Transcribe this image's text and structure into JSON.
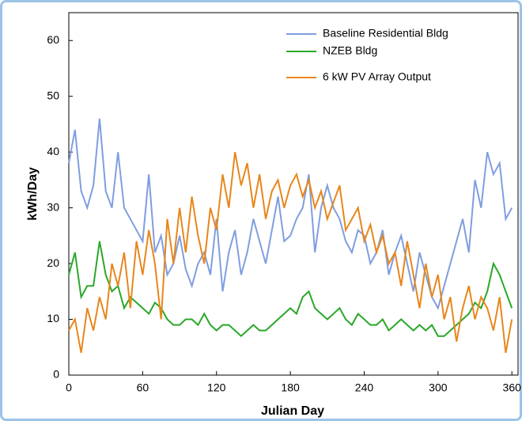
{
  "chart_data": {
    "type": "line",
    "x_label": "Julian Day",
    "y_label": "kWh/Day",
    "x": [
      0,
      5,
      10,
      15,
      20,
      25,
      30,
      35,
      40,
      45,
      50,
      55,
      60,
      65,
      70,
      75,
      80,
      85,
      90,
      95,
      100,
      105,
      110,
      115,
      120,
      125,
      130,
      135,
      140,
      145,
      150,
      155,
      160,
      165,
      170,
      175,
      180,
      185,
      190,
      195,
      200,
      205,
      210,
      215,
      220,
      225,
      230,
      235,
      240,
      245,
      250,
      255,
      260,
      265,
      270,
      275,
      280,
      285,
      290,
      295,
      300,
      305,
      310,
      315,
      320,
      325,
      330,
      335,
      340,
      345,
      350,
      355,
      360
    ],
    "series": [
      {
        "name": "Baseline Residential Bldg",
        "color": "#7f9ee0",
        "values": [
          38,
          44,
          33,
          30,
          34,
          46,
          33,
          30,
          40,
          30,
          28,
          26,
          24,
          36,
          22,
          25,
          18,
          20,
          25,
          19,
          16,
          20,
          22,
          18,
          28,
          15,
          22,
          26,
          18,
          22,
          28,
          24,
          20,
          26,
          32,
          24,
          25,
          28,
          30,
          36,
          22,
          30,
          34,
          30,
          28,
          24,
          22,
          26,
          25,
          20,
          22,
          26,
          18,
          22,
          25,
          20,
          15,
          22,
          18,
          14,
          12,
          16,
          20,
          24,
          28,
          22,
          35,
          30,
          40,
          36,
          38,
          28,
          30
        ]
      },
      {
        "name": "NZEB Bldg",
        "color": "#2aa82a",
        "values": [
          18,
          22,
          14,
          16,
          16,
          24,
          18,
          15,
          16,
          12,
          14,
          13,
          12,
          11,
          13,
          12,
          10,
          9,
          9,
          10,
          10,
          9,
          11,
          9,
          8,
          9,
          9,
          8,
          7,
          8,
          9,
          8,
          8,
          9,
          10,
          11,
          12,
          11,
          14,
          15,
          12,
          11,
          10,
          11,
          12,
          10,
          9,
          11,
          10,
          9,
          9,
          10,
          8,
          9,
          10,
          9,
          8,
          9,
          8,
          9,
          7,
          7,
          8,
          9,
          10,
          11,
          13,
          12,
          15,
          20,
          18,
          15,
          12
        ]
      },
      {
        "name": "6 kW PV Array Output",
        "color": "#e8861a",
        "values": [
          8,
          10,
          4,
          12,
          8,
          14,
          10,
          20,
          16,
          22,
          12,
          24,
          18,
          26,
          20,
          10,
          28,
          20,
          30,
          22,
          32,
          25,
          20,
          30,
          26,
          36,
          30,
          40,
          34,
          38,
          30,
          36,
          28,
          33,
          35,
          30,
          34,
          36,
          32,
          35,
          30,
          33,
          28,
          31,
          34,
          26,
          28,
          30,
          24,
          27,
          22,
          25,
          20,
          22,
          16,
          24,
          18,
          12,
          20,
          14,
          18,
          10,
          14,
          6,
          12,
          16,
          10,
          14,
          12,
          8,
          14,
          4,
          10
        ]
      }
    ],
    "xlim": [
      0,
      365
    ],
    "ylim": [
      0,
      65
    ],
    "xticks": [
      0,
      60,
      120,
      180,
      240,
      300,
      360
    ],
    "yticks": [
      0,
      10,
      20,
      30,
      40,
      50,
      60
    ],
    "legend": "upper right",
    "grid": false
  }
}
